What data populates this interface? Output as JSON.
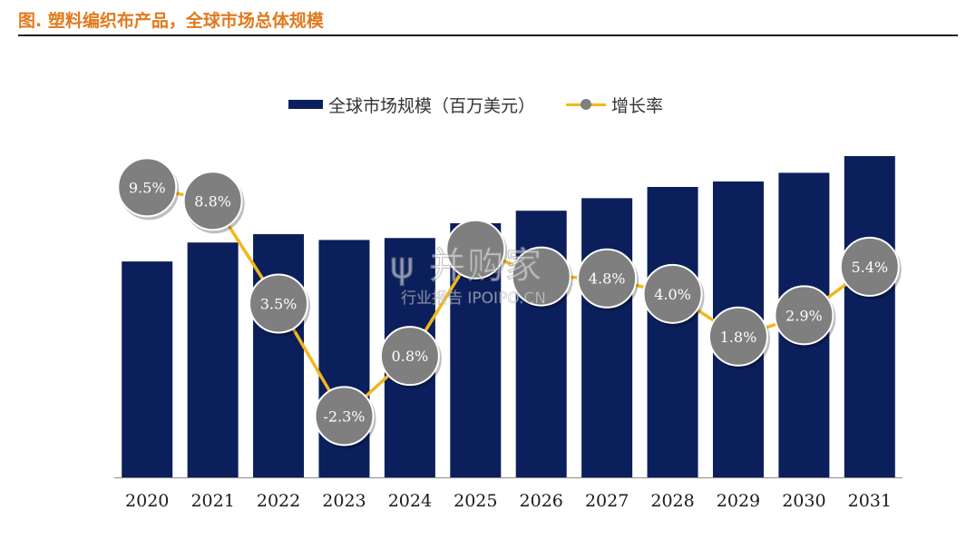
{
  "header": {
    "title": "图. 塑料编织布产品，全球市场总体规模"
  },
  "legend": {
    "bar_label": "全球市场规模（百万美元）",
    "line_label": "增长率"
  },
  "watermark": {
    "logo_text": "ψ 并购家",
    "sub_text": "行业报告 IPOIPO.CN"
  },
  "colors": {
    "bar": "#0b1f5c",
    "line": "#f2b71b",
    "marker_fill": "#7f7f7f",
    "title": "#e2791d"
  },
  "chart_data": {
    "type": "bar",
    "categories": [
      "2020",
      "2021",
      "2022",
      "2023",
      "2024",
      "2025",
      "2026",
      "2027",
      "2028",
      "2029",
      "2030",
      "2031"
    ],
    "series": [
      {
        "name": "全球市场规模（百万美元）",
        "type": "bar",
        "values": [
          67.2,
          73.1,
          75.7,
          73.9,
          74.5,
          79.1,
          83.0,
          86.9,
          90.4,
          92.1,
          94.8,
          100.0
        ]
      },
      {
        "name": "增长率",
        "type": "line",
        "values": [
          9.5,
          8.8,
          3.5,
          -2.3,
          0.8,
          6.3,
          4.9,
          4.8,
          4.0,
          1.8,
          2.9,
          5.4
        ],
        "labels": [
          "9.5%",
          "8.8%",
          "3.5%",
          "-2.3%",
          "0.8%",
          "",
          "",
          "4.8%",
          "4.0%",
          "1.8%",
          "2.9%",
          "5.4%"
        ]
      }
    ],
    "x_tick_labels": [
      "2020",
      "2021",
      "2022",
      "2023",
      "2024",
      "2025",
      "2026",
      "2027",
      "2028",
      "2029",
      "2030",
      "2031"
    ],
    "bar_ylim": [
      0,
      100
    ],
    "line_ylim": [
      -3.5,
      10.5
    ],
    "grid": false,
    "legend_position": "top-center"
  }
}
